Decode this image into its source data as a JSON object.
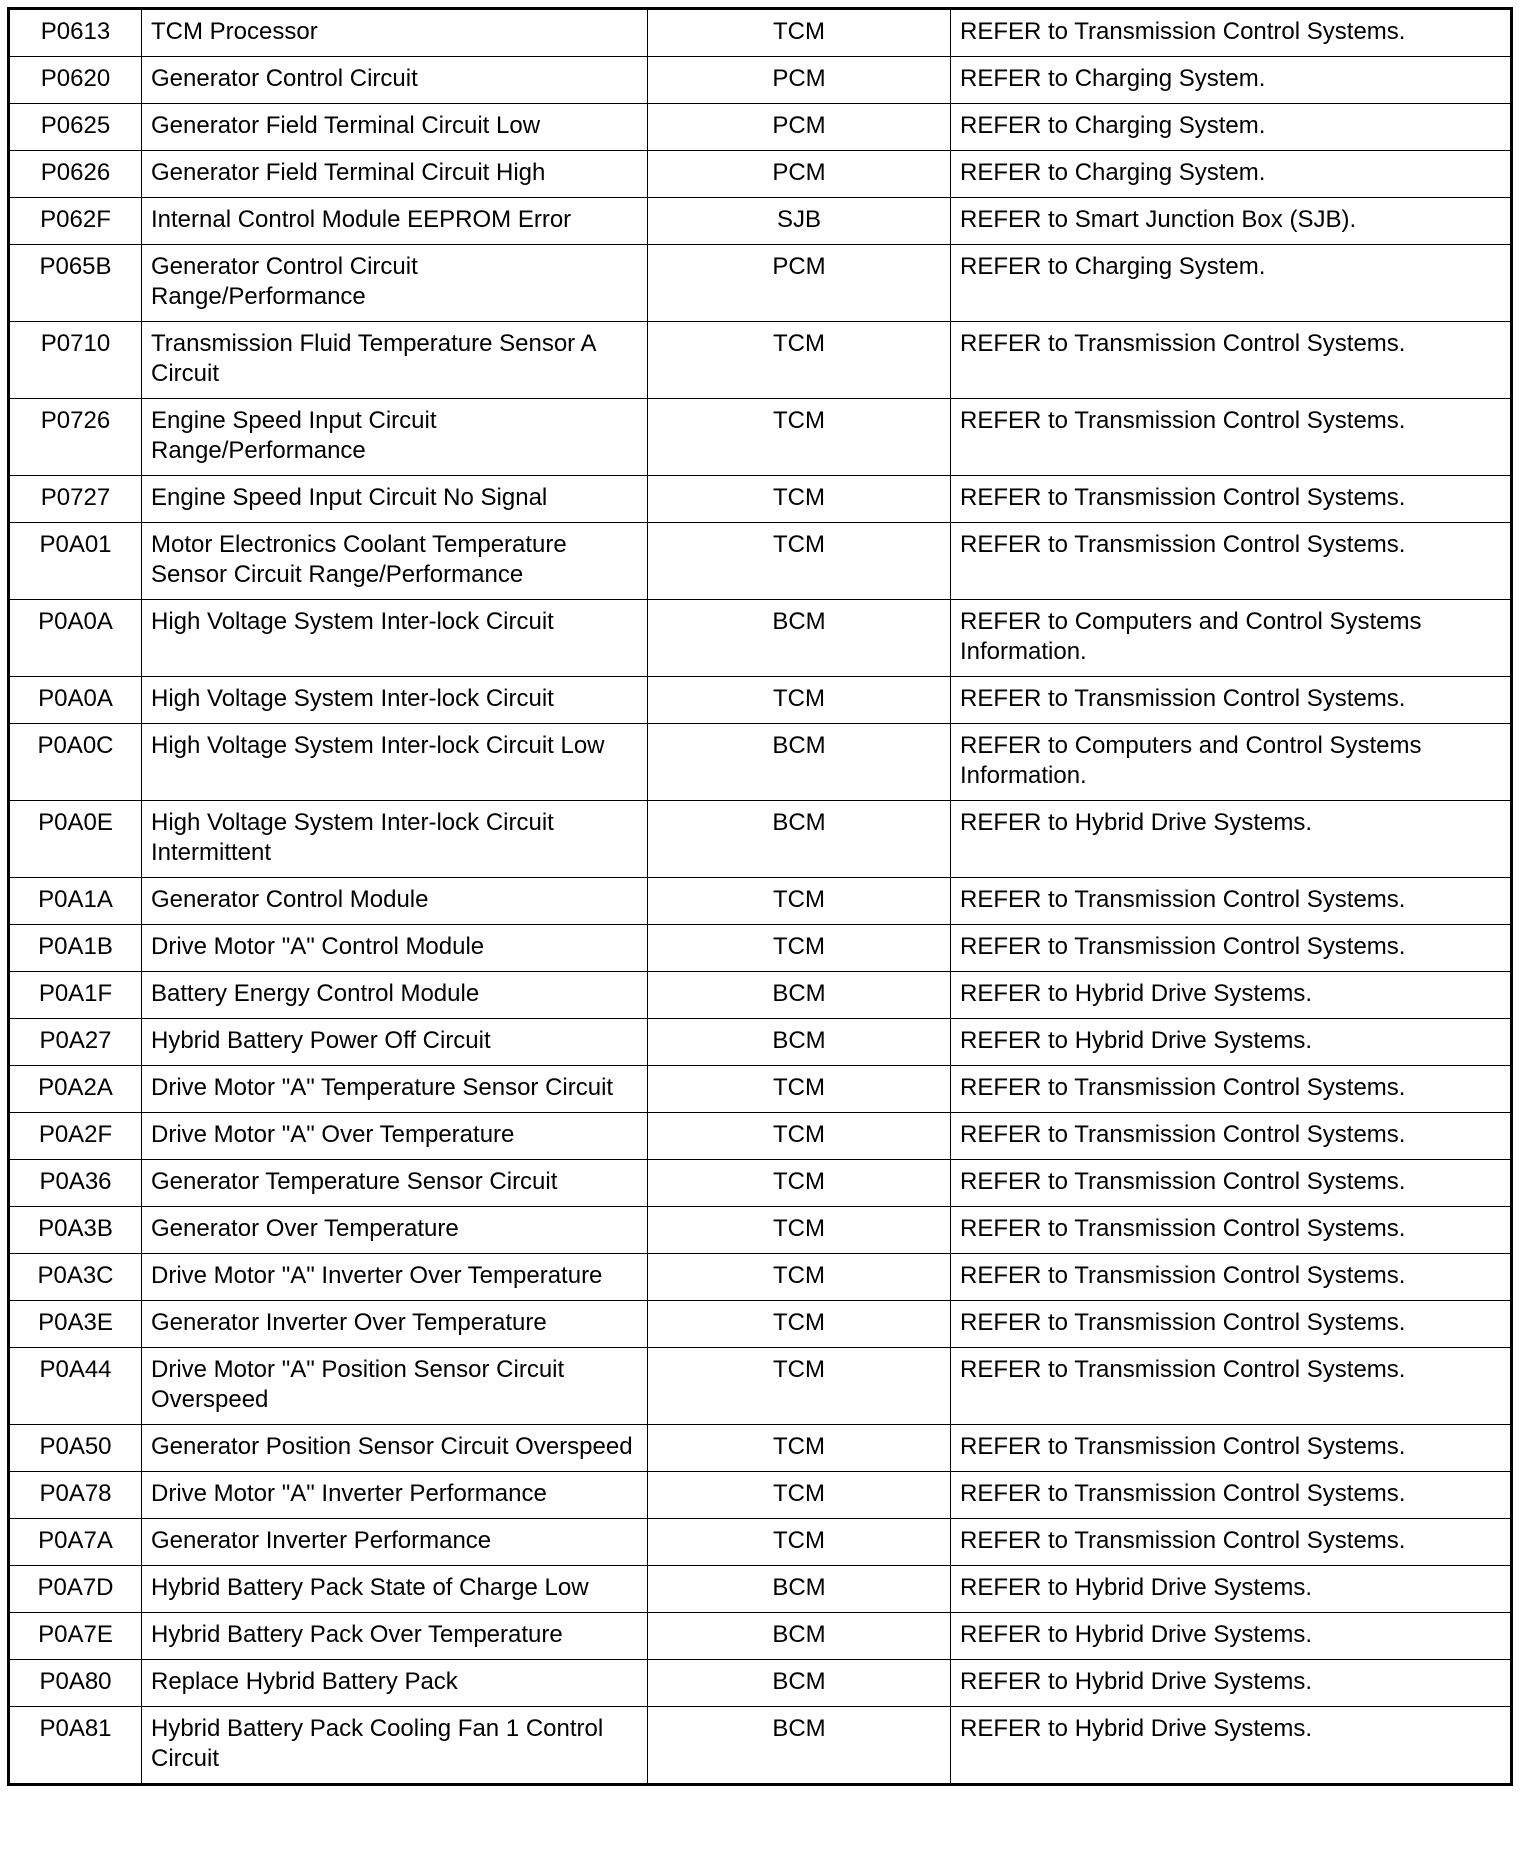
{
  "rows": [
    {
      "code": "P0613",
      "description": "TCM Processor",
      "module": "TCM",
      "action": "REFER to Transmission Control Systems."
    },
    {
      "code": "P0620",
      "description": "Generator Control Circuit",
      "module": "PCM",
      "action": "REFER to Charging System."
    },
    {
      "code": "P0625",
      "description": "Generator Field Terminal Circuit Low",
      "module": "PCM",
      "action": "REFER to Charging System."
    },
    {
      "code": "P0626",
      "description": "Generator Field Terminal Circuit High",
      "module": "PCM",
      "action": "REFER to Charging System."
    },
    {
      "code": "P062F",
      "description": "Internal Control Module EEPROM Error",
      "module": "SJB",
      "action": "REFER to Smart Junction Box (SJB)."
    },
    {
      "code": "P065B",
      "description": "Generator Control Circuit Range/Performance",
      "module": "PCM",
      "action": "REFER to Charging System."
    },
    {
      "code": "P0710",
      "description": "Transmission Fluid Temperature Sensor A Circuit",
      "module": "TCM",
      "action": "REFER to Transmission Control Systems."
    },
    {
      "code": "P0726",
      "description": "Engine Speed Input Circuit Range/Performance",
      "module": "TCM",
      "action": "REFER to Transmission Control Systems."
    },
    {
      "code": "P0727",
      "description": "Engine Speed Input Circuit No Signal",
      "module": "TCM",
      "action": "REFER to Transmission Control Systems."
    },
    {
      "code": "P0A01",
      "description": "Motor Electronics Coolant Temperature Sensor Circuit Range/Performance",
      "module": "TCM",
      "action": "REFER to Transmission Control Systems."
    },
    {
      "code": "P0A0A",
      "description": "High Voltage System Inter-lock Circuit",
      "module": "BCM",
      "action": "REFER to Computers and Control Systems Information."
    },
    {
      "code": "P0A0A",
      "description": "High Voltage System Inter-lock Circuit",
      "module": "TCM",
      "action": "REFER to Transmission Control Systems."
    },
    {
      "code": "P0A0C",
      "description": "High Voltage System Inter-lock Circuit Low",
      "module": "BCM",
      "action": "REFER to Computers and Control Systems Information."
    },
    {
      "code": "P0A0E",
      "description": "High Voltage System Inter-lock Circuit Intermittent",
      "module": "BCM",
      "action": "REFER to Hybrid Drive Systems."
    },
    {
      "code": "P0A1A",
      "description": "Generator Control Module",
      "module": "TCM",
      "action": "REFER to Transmission Control Systems."
    },
    {
      "code": "P0A1B",
      "description": "Drive Motor \"A\" Control Module",
      "module": "TCM",
      "action": "REFER to Transmission Control Systems."
    },
    {
      "code": "P0A1F",
      "description": "Battery Energy Control Module",
      "module": "BCM",
      "action": "REFER to Hybrid Drive Systems."
    },
    {
      "code": "P0A27",
      "description": "Hybrid Battery Power Off Circuit",
      "module": "BCM",
      "action": "REFER to Hybrid Drive Systems."
    },
    {
      "code": "P0A2A",
      "description": "Drive Motor \"A\" Temperature Sensor Circuit",
      "module": "TCM",
      "action": "REFER to Transmission Control Systems."
    },
    {
      "code": "P0A2F",
      "description": "Drive Motor \"A\" Over Temperature",
      "module": "TCM",
      "action": "REFER to Transmission Control Systems."
    },
    {
      "code": "P0A36",
      "description": "Generator Temperature Sensor Circuit",
      "module": "TCM",
      "action": "REFER to Transmission Control Systems."
    },
    {
      "code": "P0A3B",
      "description": "Generator Over Temperature",
      "module": "TCM",
      "action": "REFER to Transmission Control Systems."
    },
    {
      "code": "P0A3C",
      "description": "Drive Motor \"A\" Inverter Over Temperature",
      "module": "TCM",
      "action": "REFER to Transmission Control Systems."
    },
    {
      "code": "P0A3E",
      "description": "Generator Inverter Over Temperature",
      "module": "TCM",
      "action": "REFER to Transmission Control Systems."
    },
    {
      "code": "P0A44",
      "description": "Drive Motor \"A\" Position Sensor Circuit Overspeed",
      "module": "TCM",
      "action": "REFER to Transmission Control Systems."
    },
    {
      "code": "P0A50",
      "description": "Generator Position Sensor Circuit Overspeed",
      "module": "TCM",
      "action": "REFER to Transmission Control Systems."
    },
    {
      "code": "P0A78",
      "description": "Drive Motor \"A\" Inverter Performance",
      "module": "TCM",
      "action": "REFER to Transmission Control Systems."
    },
    {
      "code": "P0A7A",
      "description": "Generator Inverter Performance",
      "module": "TCM",
      "action": "REFER to Transmission Control Systems."
    },
    {
      "code": "P0A7D",
      "description": "Hybrid Battery Pack State of Charge Low",
      "module": "BCM",
      "action": "REFER to Hybrid Drive Systems."
    },
    {
      "code": "P0A7E",
      "description": "Hybrid Battery Pack Over Temperature",
      "module": "BCM",
      "action": "REFER to Hybrid Drive Systems."
    },
    {
      "code": "P0A80",
      "description": "Replace Hybrid Battery Pack",
      "module": "BCM",
      "action": "REFER to Hybrid Drive Systems."
    },
    {
      "code": "P0A81",
      "description": "Hybrid Battery Pack Cooling Fan 1 Control Circuit",
      "module": "BCM",
      "action": "REFER to Hybrid Drive Systems."
    }
  ]
}
